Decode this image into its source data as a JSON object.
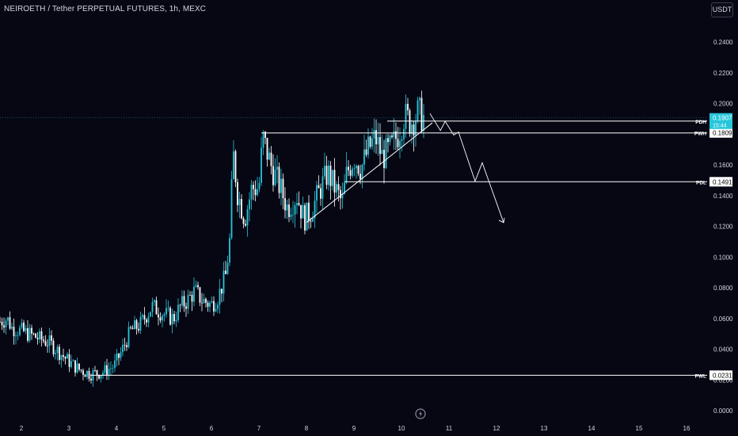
{
  "header": {
    "title": "NEIROETH / Tether PERPETUAL FUTURES, 1h, MEXC",
    "currency": "USDT"
  },
  "colors": {
    "background": "#070714",
    "up": "#26c6da",
    "down": "#ffffff",
    "line": "#ffffff",
    "axis_text": "#d1d4dc",
    "current_price_bg": "#26c6da"
  },
  "chart_data": {
    "type": "candlestick",
    "title": "NEIROETH / Tether PERPETUAL FUTURES, 1h, MEXC",
    "x_ticks": [
      "2",
      "3",
      "4",
      "5",
      "6",
      "7",
      "8",
      "9",
      "10",
      "11",
      "12",
      "13",
      "14",
      "15",
      "16"
    ],
    "x_range_days": [
      1.55,
      16.45
    ],
    "y_ticks": [
      "0.2400",
      "0.2200",
      "0.2000",
      "0.1800",
      "0.1600",
      "0.1400",
      "0.1200",
      "0.1000",
      "0.0800",
      "0.0600",
      "0.0400",
      "0.0200",
      "0.0000"
    ],
    "ylim": [
      -0.001,
      0.252
    ],
    "grid": false,
    "levels": [
      {
        "label": "PDH",
        "price": "0.1886",
        "value": 0.1886,
        "x_start": 9.7,
        "style": "white"
      },
      {
        "label": "PWH",
        "price": "0.1809",
        "value": 0.1809,
        "x_start": 7.05,
        "style": "white"
      },
      {
        "label": "PDL",
        "price": "0.1491",
        "value": 0.1491,
        "x_start": 8.8,
        "style": "white"
      },
      {
        "label": "PWL",
        "price": "0.0231",
        "value": 0.0231,
        "x_start": 3.45,
        "style": "white"
      }
    ],
    "current_price": {
      "price": "0.1907",
      "countdown": "15:44",
      "value": 0.1907
    },
    "trendline": {
      "points": [
        [
          8.0,
          0.1225
        ],
        [
          10.65,
          0.1875
        ]
      ]
    },
    "projection_path": {
      "points": [
        [
          10.6,
          0.1935
        ],
        [
          10.82,
          0.1825
        ],
        [
          10.92,
          0.1885
        ],
        [
          11.1,
          0.1795
        ],
        [
          11.2,
          0.1815
        ],
        [
          11.55,
          0.1495
        ],
        [
          11.7,
          0.1615
        ],
        [
          12.15,
          0.1225
        ]
      ]
    },
    "candles_close_path": [
      [
        1.55,
        0.058
      ],
      [
        1.7,
        0.06
      ],
      [
        1.8,
        0.054
      ],
      [
        2.0,
        0.052
      ],
      [
        2.3,
        0.048
      ],
      [
        2.6,
        0.044
      ],
      [
        2.8,
        0.038
      ],
      [
        3.0,
        0.032
      ],
      [
        3.2,
        0.027
      ],
      [
        3.45,
        0.024
      ],
      [
        3.7,
        0.025
      ],
      [
        3.95,
        0.029
      ],
      [
        4.1,
        0.038
      ],
      [
        4.3,
        0.052
      ],
      [
        4.5,
        0.056
      ],
      [
        4.75,
        0.068
      ],
      [
        5.0,
        0.063
      ],
      [
        5.2,
        0.06
      ],
      [
        5.35,
        0.068
      ],
      [
        5.5,
        0.072
      ],
      [
        5.65,
        0.078
      ],
      [
        5.8,
        0.072
      ],
      [
        6.0,
        0.069
      ],
      [
        6.15,
        0.075
      ],
      [
        6.3,
        0.088
      ],
      [
        6.4,
        0.115
      ],
      [
        6.45,
        0.17
      ],
      [
        6.55,
        0.142
      ],
      [
        6.7,
        0.125
      ],
      [
        6.85,
        0.145
      ],
      [
        7.0,
        0.145
      ],
      [
        7.08,
        0.178
      ],
      [
        7.25,
        0.16
      ],
      [
        7.45,
        0.145
      ],
      [
        7.6,
        0.132
      ],
      [
        7.8,
        0.14
      ],
      [
        7.95,
        0.125
      ],
      [
        8.1,
        0.13
      ],
      [
        8.3,
        0.145
      ],
      [
        8.45,
        0.155
      ],
      [
        8.6,
        0.145
      ],
      [
        8.75,
        0.135
      ],
      [
        8.85,
        0.155
      ],
      [
        9.0,
        0.165
      ],
      [
        9.15,
        0.158
      ],
      [
        9.3,
        0.17
      ],
      [
        9.45,
        0.178
      ],
      [
        9.6,
        0.165
      ],
      [
        9.8,
        0.172
      ],
      [
        9.95,
        0.182
      ],
      [
        10.05,
        0.192
      ],
      [
        10.2,
        0.188
      ],
      [
        10.35,
        0.194
      ],
      [
        10.5,
        0.19
      ]
    ],
    "candle_colors": {
      "bullish": "#26c6da",
      "bearish": "#ffffff"
    }
  }
}
